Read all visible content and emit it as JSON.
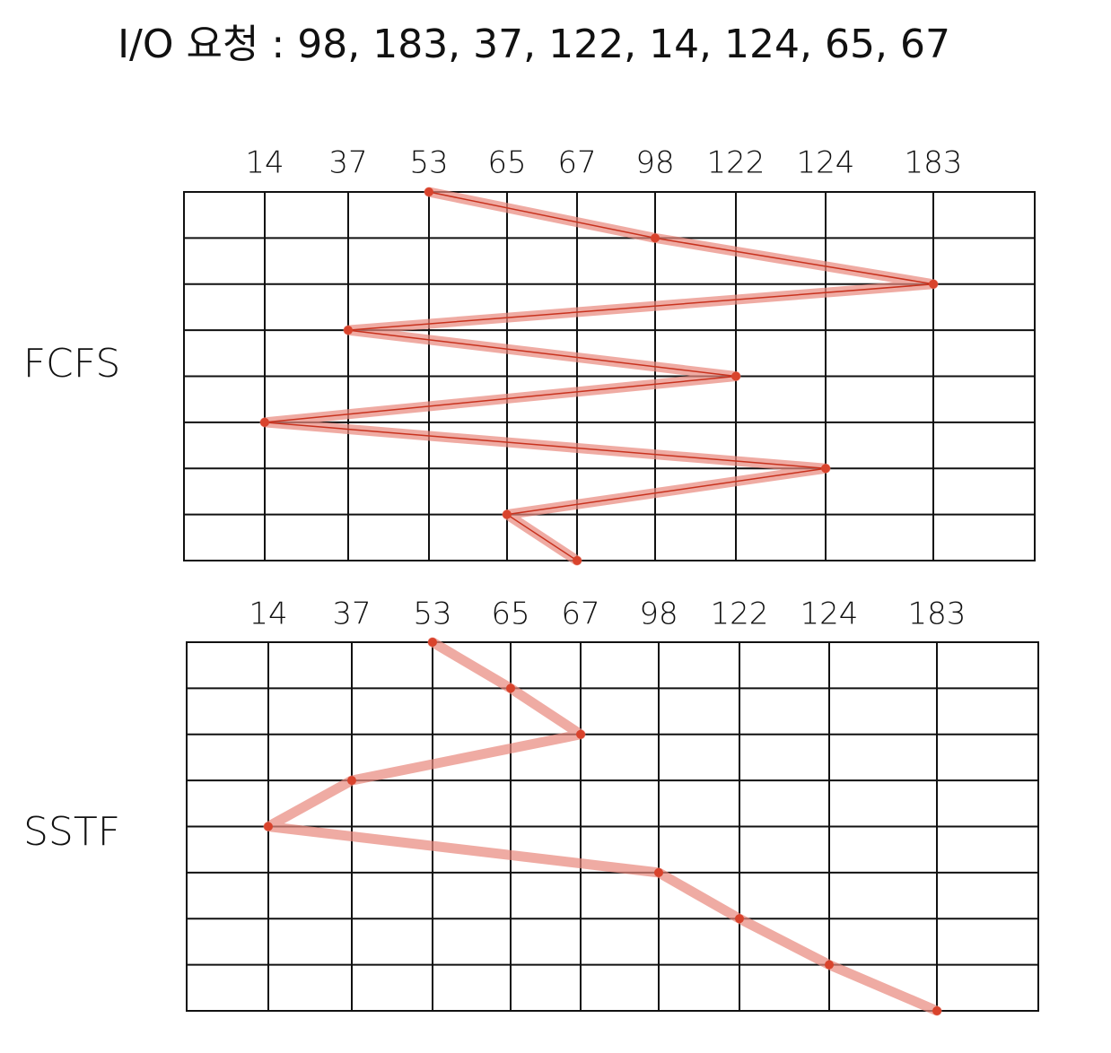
{
  "title": "I/O 요청 : 98, 183, 37, 122, 14, 124, 65, 67",
  "panels": [
    {
      "label": "FCFS",
      "columns": [
        14,
        37,
        53,
        65,
        67,
        98,
        122,
        124,
        183
      ],
      "sequence": [
        53,
        98,
        183,
        37,
        122,
        14,
        124,
        65,
        67
      ]
    },
    {
      "label": "SSTF",
      "columns": [
        14,
        37,
        53,
        65,
        67,
        98,
        122,
        124,
        183
      ],
      "sequence": [
        53,
        65,
        67,
        37,
        14,
        98,
        122,
        124,
        183
      ]
    }
  ]
}
